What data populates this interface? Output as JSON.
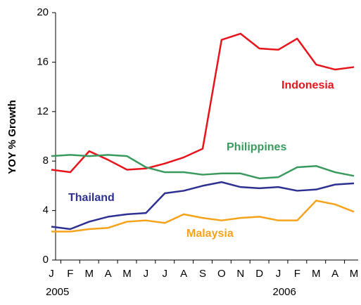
{
  "chart_data": {
    "type": "line",
    "y_axis_label": "YOY % Growth",
    "categories": [
      "J",
      "F",
      "M",
      "A",
      "M",
      "J",
      "J",
      "A",
      "S",
      "O",
      "N",
      "D",
      "J",
      "F",
      "M",
      "A",
      "M"
    ],
    "year_labels": [
      "2005",
      "2006"
    ],
    "ylim": [
      0,
      20
    ],
    "yticks": [
      0,
      4,
      8,
      12,
      16,
      20
    ],
    "grid": false,
    "series": [
      {
        "name": "Indonesia",
        "color": "#e8141b",
        "values": [
          7.3,
          7.1,
          8.8,
          8.1,
          7.3,
          7.4,
          7.8,
          8.3,
          9.0,
          17.8,
          18.3,
          17.1,
          17.0,
          17.9,
          15.8,
          15.4,
          15.6
        ]
      },
      {
        "name": "Philippines",
        "color": "#3a9a5e",
        "values": [
          8.4,
          8.5,
          8.4,
          8.5,
          8.4,
          7.5,
          7.1,
          7.1,
          6.9,
          7.0,
          7.0,
          6.6,
          6.7,
          7.5,
          7.6,
          7.1,
          6.8
        ]
      },
      {
        "name": "Thailand",
        "color": "#2e3192",
        "values": [
          2.7,
          2.5,
          3.1,
          3.5,
          3.7,
          3.8,
          5.4,
          5.6,
          6.0,
          6.3,
          5.9,
          5.8,
          5.9,
          5.6,
          5.7,
          6.1,
          6.2
        ]
      },
      {
        "name": "Malaysia",
        "color": "#f7a21b",
        "values": [
          2.3,
          2.3,
          2.5,
          2.6,
          3.1,
          3.2,
          3.0,
          3.7,
          3.4,
          3.2,
          3.4,
          3.5,
          3.2,
          3.2,
          4.8,
          4.5,
          3.9
        ]
      }
    ]
  }
}
